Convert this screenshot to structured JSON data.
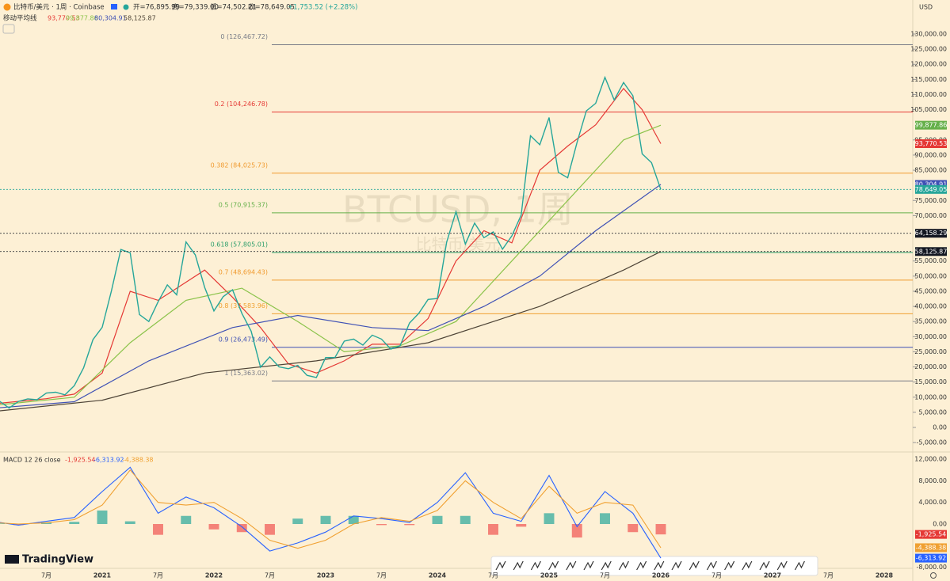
{
  "header": {
    "symbol": "比特币/美元 · 1周 · Coinbase",
    "open": "开=76,895.99",
    "high": "高=79,339.00",
    "low": "低=74,502.21",
    "close": "收=78,649.05",
    "change": "+1,753.52 (+2.28%)",
    "ma_title": "移动平均线",
    "watermark": "BTCUSD, 1周",
    "watermark_sub": "比特币/美元",
    "currency": "USD",
    "brand": "TradingView"
  },
  "chart_data": [
    {
      "type": "line",
      "title": "BTCUSD",
      "x": [
        "2020-02",
        "2020-03",
        "2020-04",
        "2020-05",
        "2020-06",
        "2020-07",
        "2020-08",
        "2020-09",
        "2020-10",
        "2020-11",
        "2020-12",
        "2021-01",
        "2021-02",
        "2021-03",
        "2021-04",
        "2021-05",
        "2021-06",
        "2021-07",
        "2021-08",
        "2021-09",
        "2021-10",
        "2021-11",
        "2021-12",
        "2022-01",
        "2022-02",
        "2022-03",
        "2022-04",
        "2022-05",
        "2022-06",
        "2022-07",
        "2022-08",
        "2022-09",
        "2022-10",
        "2022-11",
        "2022-12",
        "2023-01",
        "2023-02",
        "2023-03",
        "2023-04",
        "2023-05",
        "2023-06",
        "2023-07",
        "2023-08",
        "2023-09",
        "2023-10",
        "2023-11",
        "2023-12",
        "2024-01",
        "2024-02",
        "2024-03",
        "2024-04",
        "2024-05",
        "2024-06",
        "2024-07",
        "2024-08",
        "2024-09",
        "2024-10",
        "2024-11",
        "2024-12",
        "2025-01",
        "2025-02",
        "2025-03",
        "2025-04",
        "2025-05",
        "2025-06",
        "2025-07",
        "2025-08",
        "2025-09",
        "2025-10",
        "2025-11",
        "2025-12",
        "2026-01"
      ],
      "series": [
        {
          "name": "收",
          "color": "#26a69a",
          "values": [
            8600,
            6400,
            8600,
            9450,
            9150,
            11350,
            11650,
            10780,
            13800,
            19700,
            29000,
            33100,
            45200,
            58800,
            57700,
            37300,
            35000,
            41500,
            47100,
            43800,
            61300,
            57000,
            46300,
            38500,
            43200,
            45500,
            37700,
            31800,
            19900,
            23300,
            20000,
            19400,
            20500,
            17200,
            16500,
            23100,
            23100,
            28500,
            29200,
            27200,
            30500,
            29200,
            25900,
            27000,
            34500,
            37700,
            42300,
            42600,
            61200,
            71300,
            60600,
            67500,
            62700,
            64600,
            58900,
            63300,
            70200,
            96400,
            93400,
            102400,
            84300,
            82500,
            94200,
            104600,
            107100,
            115700,
            108200,
            114000,
            109600,
            90400,
            87500,
            78649.05
          ]
        }
      ],
      "ma_series": [
        {
          "color": "#e53935",
          "last_label": "93,770.53",
          "x": [
            "2020-02",
            "2020-07",
            "2020-10",
            "2021-01",
            "2021-04",
            "2021-07",
            "2021-10",
            "2021-12",
            "2022-03",
            "2022-06",
            "2022-09",
            "2022-12",
            "2023-03",
            "2023-06",
            "2023-09",
            "2023-12",
            "2024-03",
            "2024-06",
            "2024-09",
            "2024-12",
            "2025-03",
            "2025-06",
            "2025-09",
            "2025-11",
            "2026-01"
          ],
          "values": [
            8000,
            9500,
            11000,
            18000,
            45000,
            42000,
            48000,
            52000,
            43000,
            33000,
            21000,
            18000,
            22000,
            27500,
            27500,
            36000,
            55000,
            65000,
            61000,
            85000,
            93000,
            100000,
            112000,
            105000,
            93770.53
          ]
        },
        {
          "color": "#8bc34a",
          "last_label": "99,877.86",
          "x": [
            "2020-02",
            "2020-10",
            "2021-04",
            "2021-10",
            "2022-04",
            "2022-10",
            "2023-03",
            "2023-09",
            "2024-03",
            "2024-09",
            "2025-03",
            "2025-09",
            "2026-01"
          ],
          "values": [
            7500,
            10000,
            28000,
            42000,
            46000,
            35000,
            25000,
            27000,
            35000,
            55000,
            75000,
            95000,
            99877.86
          ]
        },
        {
          "color": "#3f51b5",
          "last_label": "80,304.91",
          "x": [
            "2020-02",
            "2020-10",
            "2021-06",
            "2022-03",
            "2022-10",
            "2023-06",
            "2023-12",
            "2024-06",
            "2024-12",
            "2025-06",
            "2026-01"
          ],
          "values": [
            6500,
            8500,
            22000,
            33000,
            37000,
            33000,
            32000,
            40000,
            50000,
            65000,
            80304.91
          ]
        },
        {
          "color": "#4e4437",
          "last_label": "58,125.87",
          "x": [
            "2020-02",
            "2021-01",
            "2021-12",
            "2022-12",
            "2023-12",
            "2024-12",
            "2025-09",
            "2026-01"
          ],
          "values": [
            5500,
            9000,
            18000,
            22000,
            28000,
            40000,
            52000,
            58125.87
          ]
        }
      ],
      "fib_levels": [
        {
          "label": "0 (126,467.72)",
          "value": 126467.72,
          "color": "#787b86"
        },
        {
          "label": "0.2 (104,246.78)",
          "value": 104246.78,
          "color": "#e53935"
        },
        {
          "label": "0.382 (84,025.73)",
          "value": 84025.73,
          "color": "#f09a2f"
        },
        {
          "label": "0.5 (70,915.37)",
          "value": 70915.37,
          "color": "#66b04a"
        },
        {
          "label": "0.618 (57,805.01)",
          "value": 57805.01,
          "color": "#2e9e6b"
        },
        {
          "label": "0.7 (48,694.43)",
          "value": 48694.43,
          "color": "#f09a2f"
        },
        {
          "label": "0.8 (37,583.96)",
          "value": 37583.96,
          "color": "#f0a030"
        },
        {
          "label": "0.9 (26,473.49)",
          "value": 26473.49,
          "color": "#3f51b5"
        },
        {
          "label": "1 (15,363.02)",
          "value": 15363.02,
          "color": "#787b86"
        }
      ],
      "price_tags": [
        {
          "label": "99,877.86",
          "value": 99877.86,
          "color": "#66b04a"
        },
        {
          "label": "93,770.53",
          "value": 93770.53,
          "color": "#e53935"
        },
        {
          "label": "80,304.91",
          "value": 80304.91,
          "color": "#3f51b5"
        },
        {
          "label": "78,649.05",
          "value": 78649.05,
          "color": "#26a69a"
        },
        {
          "label": "64,158.29",
          "value": 64158.29,
          "color": "#131722"
        },
        {
          "label": "58,125.87",
          "value": 58125.87,
          "color": "#131722"
        }
      ],
      "ylim": [
        -7000,
        130000
      ],
      "yticks": [
        {
          "value": 130000,
          "label": "130,000.00"
        },
        {
          "value": 125000,
          "label": "125,000.00"
        },
        {
          "value": 120000,
          "label": "120,000.00"
        },
        {
          "value": 115000,
          "label": "115,000.00"
        },
        {
          "value": 110000,
          "label": "110,000.00"
        },
        {
          "value": 105000,
          "label": "105,000.00"
        },
        {
          "value": 95000,
          "label": "95,000.00"
        },
        {
          "value": 90000,
          "label": "90,000.00"
        },
        {
          "value": 85000,
          "label": "85,000.00"
        },
        {
          "value": 75000,
          "label": "75,000.00"
        },
        {
          "value": 70000,
          "label": "70,000.00"
        },
        {
          "value": 55000,
          "label": "55,000.00"
        },
        {
          "value": 50000,
          "label": "50,000.00"
        },
        {
          "value": 45000,
          "label": "45,000.00"
        },
        {
          "value": 40000,
          "label": "40,000.00"
        },
        {
          "value": 35000,
          "label": "35,000.00"
        },
        {
          "value": 30000,
          "label": "30,000.00"
        },
        {
          "value": 25000,
          "label": "25,000.00"
        },
        {
          "value": 20000,
          "label": "20,000.00"
        },
        {
          "value": 15000,
          "label": "15,000.00"
        },
        {
          "value": 10000,
          "label": "10,000.00"
        },
        {
          "value": 5000,
          "label": "5,000.00"
        },
        {
          "value": 0,
          "label": "0.00"
        },
        {
          "value": -5000,
          "label": "-5,000.00"
        }
      ],
      "xticks": [
        {
          "value": "2020-07",
          "label": "7月"
        },
        {
          "value": "2021-01",
          "label": "2021"
        },
        {
          "value": "2021-07",
          "label": "7月"
        },
        {
          "value": "2022-01",
          "label": "2022"
        },
        {
          "value": "2022-07",
          "label": "7月"
        },
        {
          "value": "2023-01",
          "label": "2023"
        },
        {
          "value": "2023-07",
          "label": "7月"
        },
        {
          "value": "2024-01",
          "label": "2024"
        },
        {
          "value": "2024-07",
          "label": "7月"
        },
        {
          "value": "2025-01",
          "label": "2025"
        },
        {
          "value": "2025-07",
          "label": "7月"
        },
        {
          "value": "2026-01",
          "label": "2026"
        },
        {
          "value": "2026-07",
          "label": "7月"
        },
        {
          "value": "2027-01",
          "label": "2027"
        },
        {
          "value": "2027-07",
          "label": "7月"
        },
        {
          "value": "2028-01",
          "label": "2028"
        }
      ]
    },
    {
      "type": "macd",
      "title": "MACD 12 26 close",
      "x": [
        "2020-02",
        "2020-04",
        "2020-07",
        "2020-10",
        "2021-01",
        "2021-04",
        "2021-07",
        "2021-10",
        "2022-01",
        "2022-04",
        "2022-07",
        "2022-10",
        "2023-01",
        "2023-04",
        "2023-07",
        "2023-10",
        "2024-01",
        "2024-04",
        "2024-07",
        "2024-10",
        "2025-01",
        "2025-04",
        "2025-07",
        "2025-10",
        "2026-01"
      ],
      "series": [
        {
          "name": "-1,925.54",
          "color": "#e53935",
          "values": [
            100,
            -200,
            300,
            400,
            2500,
            500,
            -2000,
            1500,
            -1000,
            -1500,
            -2000,
            1000,
            1500,
            1500,
            -200,
            -200,
            1500,
            1500,
            -2000,
            -500,
            2000,
            -2500,
            2000,
            -1500,
            -1925.54
          ]
        },
        {
          "name": "-6,313.92",
          "color": "#2962ff",
          "values": [
            300,
            -200,
            500,
            1200,
            6000,
            10500,
            2000,
            5000,
            3000,
            -500,
            -5000,
            -3500,
            -1500,
            1500,
            1000,
            300,
            4000,
            9500,
            2000,
            500,
            9000,
            -500,
            6000,
            2000,
            -6313.92
          ]
        },
        {
          "name": "-4,388.38",
          "color": "#f0a030",
          "values": [
            200,
            0,
            200,
            800,
            3500,
            10000,
            4000,
            3500,
            4000,
            1000,
            -3000,
            -4500,
            -3000,
            0,
            1200,
            500,
            2500,
            8000,
            4000,
            1000,
            7000,
            2000,
            4000,
            3500,
            -4388.38
          ]
        }
      ],
      "hist_colors": [
        "#26a69a",
        "#ef5350"
      ],
      "ylim": [
        -8000,
        12500
      ],
      "yticks": [
        {
          "value": 12000,
          "label": "12,000.00"
        },
        {
          "value": 8000,
          "label": "8,000.00"
        },
        {
          "value": 4000,
          "label": "4,000.00"
        },
        {
          "value": 0,
          "label": "0.00"
        },
        {
          "value": -8000,
          "label": "-8,000.00"
        }
      ]
    }
  ]
}
